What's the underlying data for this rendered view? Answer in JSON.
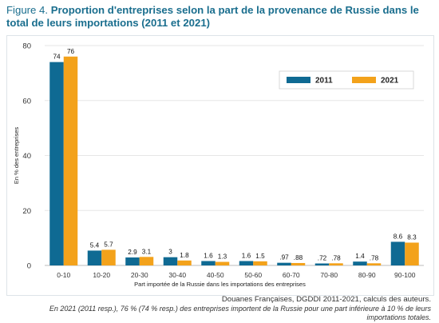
{
  "title": {
    "figure_label": "Figure 4.",
    "text": "Proportion d'entreprises selon la part de la provenance de Russie dans le total de leurs importations (2011 et 2021)"
  },
  "source": "Douanes Françaises, DGDDI 2011-2021, calculs des auteurs.",
  "note": "En 2021 (2011 resp.), 76 % (74 % resp.) des entreprises importent de la Russie pour une part inférieure à 10 % de leurs importations totales.",
  "colors": {
    "series_2011": "#0f6a93",
    "series_2021": "#f3a21b",
    "grid": "#e6e6e6"
  },
  "chart_data": {
    "type": "bar",
    "title": "",
    "xlabel": "Part importée de la Russie dans les importations des entreprises",
    "ylabel": "En % des entreprises",
    "ylim": [
      0,
      80
    ],
    "yticks": [
      0,
      20,
      40,
      60,
      80
    ],
    "grid": true,
    "legend_position": "top-right",
    "categories": [
      "0-10",
      "10-20",
      "20-30",
      "30-40",
      "40-50",
      "50-60",
      "60-70",
      "70-80",
      "80-90",
      "90-100"
    ],
    "series": [
      {
        "name": "2011",
        "color": "#0f6a93",
        "values": [
          74,
          5.4,
          2.9,
          3,
          1.6,
          1.6,
          0.97,
          0.72,
          1.4,
          8.6
        ],
        "labels": [
          "74",
          "5.4",
          "2.9",
          "3",
          "1.6",
          "1.6",
          ".97",
          ".72",
          "1.4",
          "8.6"
        ]
      },
      {
        "name": "2021",
        "color": "#f3a21b",
        "values": [
          76,
          5.7,
          3.1,
          1.8,
          1.3,
          1.5,
          0.88,
          0.78,
          0.78,
          8.3
        ],
        "labels": [
          "76",
          "5.7",
          "3.1",
          "1.8",
          "1.3",
          "1.5",
          ".88",
          ".78",
          ".78",
          "8.3"
        ]
      }
    ]
  }
}
